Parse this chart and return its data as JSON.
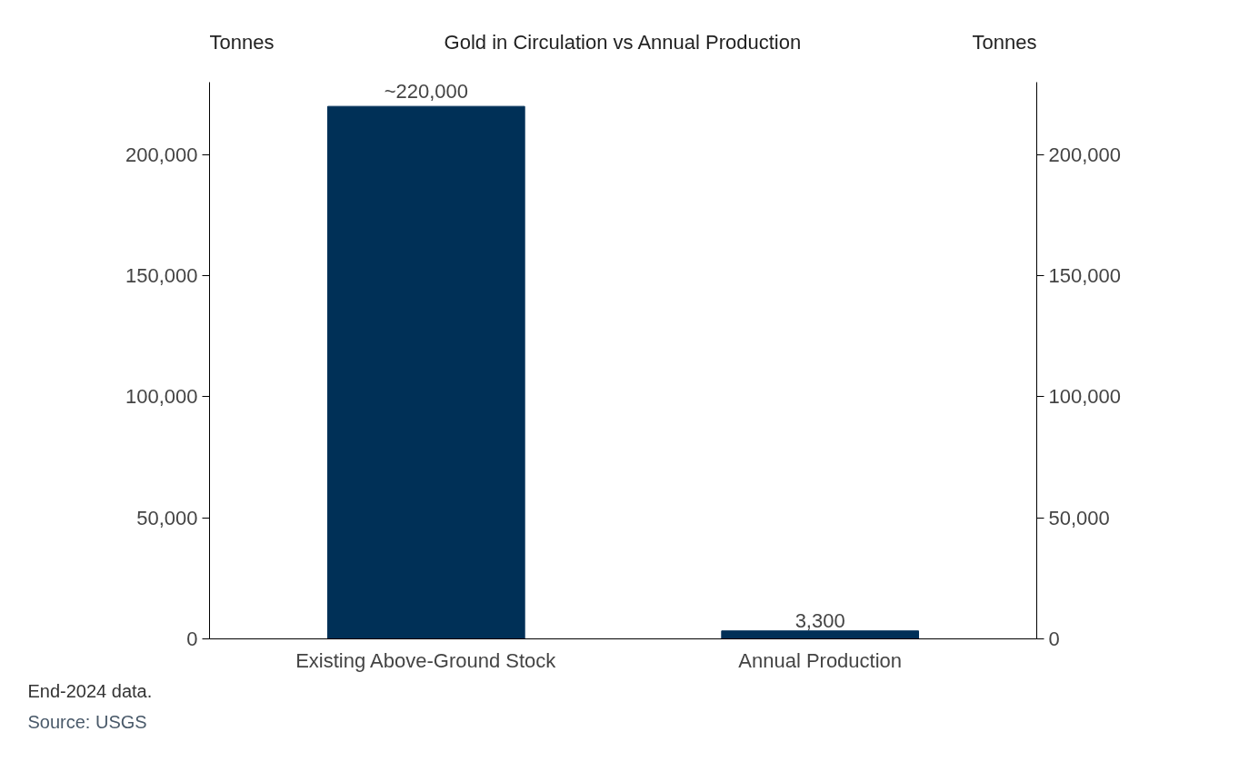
{
  "chart_data": {
    "type": "bar",
    "title": "Gold in Circulation vs Annual Production",
    "ylabel": "Tonnes",
    "y2label": "Tonnes",
    "categories": [
      "Existing Above-Ground Stock",
      "Annual Production"
    ],
    "values": [
      220000,
      3300
    ],
    "color": "#003057",
    "value_labels": [
      "~220,000",
      "3,300"
    ],
    "ylim": [
      0,
      230000
    ],
    "yticks": [
      0,
      {
        "value": 50000,
        "label": "50,000"
      },
      {
        "value": 100000,
        "label": "100,000"
      },
      {
        "value": 150000,
        "label": "150,000"
      },
      {
        "value": 200000,
        "label": "200,000"
      }
    ],
    "y2lim": [
      0,
      230000
    ],
    "y2ticks": [
      0,
      {
        "value": 50000,
        "label": "50,000"
      },
      {
        "value": 100000,
        "label": "100,000"
      },
      {
        "value": 150000,
        "label": "150,000"
      },
      {
        "value": 200000,
        "label": "200,000"
      }
    ],
    "grid": false,
    "annotations": [
      "End-2024 data.",
      "Source: USGS"
    ]
  }
}
